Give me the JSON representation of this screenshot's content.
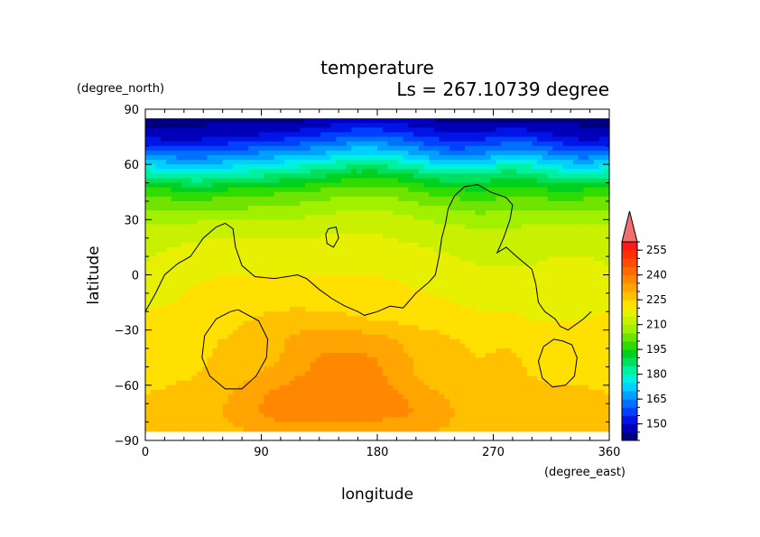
{
  "chart_data": {
    "type": "heatmap",
    "title": "temperature",
    "subtitle": "Ls = 267.10739 degree",
    "xlabel": "longitude",
    "ylabel": "latitude",
    "x_unit": "(degree_east)",
    "y_unit": "(degree_north)",
    "xlim": [
      0,
      360
    ],
    "ylim": [
      -90,
      90
    ],
    "xticks": [
      0,
      90,
      180,
      270,
      360
    ],
    "yticks": [
      90,
      60,
      30,
      0,
      -30,
      -60,
      -90
    ],
    "colorbar": {
      "levels": [
        140,
        145,
        150,
        155,
        160,
        165,
        170,
        175,
        180,
        185,
        190,
        195,
        200,
        205,
        210,
        215,
        220,
        225,
        230,
        235,
        240,
        245,
        250,
        255,
        260
      ],
      "labels": [
        150,
        165,
        180,
        195,
        210,
        225,
        240,
        255
      ],
      "colors": [
        "#00007f",
        "#0000b8",
        "#0014e6",
        "#0040ff",
        "#0070ff",
        "#00a0ff",
        "#00d0ff",
        "#00f0e0",
        "#00f0a0",
        "#00e060",
        "#00d020",
        "#30dc00",
        "#70e400",
        "#a0f000",
        "#c8f000",
        "#e6f000",
        "#ffe000",
        "#ffc000",
        "#ffa400",
        "#ff8800",
        "#ff6a00",
        "#ff4c00",
        "#ff3000",
        "#ff1a1a"
      ],
      "extend_max_color": "#f26d6d"
    },
    "latitudes": [
      85,
      75,
      65,
      55,
      45,
      35,
      25,
      15,
      5,
      -5,
      -15,
      -25,
      -35,
      -45,
      -55,
      -65,
      -75,
      -85
    ],
    "longitudes": [
      0,
      20,
      40,
      60,
      80,
      100,
      120,
      140,
      160,
      180,
      200,
      220,
      240,
      260,
      280,
      300,
      320,
      340,
      360
    ],
    "values": [
      [
        143,
        143,
        143,
        143,
        143,
        143,
        143,
        145,
        147,
        148,
        146,
        144,
        143,
        143,
        143,
        143,
        143,
        143,
        143
      ],
      [
        148,
        148,
        148,
        149,
        150,
        152,
        154,
        157,
        160,
        160,
        158,
        154,
        152,
        153,
        155,
        154,
        150,
        148,
        148
      ],
      [
        165,
        163,
        162,
        164,
        166,
        168,
        170,
        172,
        176,
        176,
        173,
        168,
        164,
        166,
        170,
        170,
        165,
        162,
        165
      ],
      [
        183,
        180,
        178,
        180,
        182,
        184,
        186,
        188,
        192,
        192,
        190,
        186,
        184,
        184,
        188,
        186,
        182,
        180,
        183
      ],
      [
        198,
        197,
        196,
        197,
        198,
        199,
        200,
        202,
        204,
        204,
        202,
        199,
        197,
        196,
        198,
        198,
        196,
        197,
        198
      ],
      [
        206,
        205,
        205,
        206,
        206,
        207,
        208,
        209,
        210,
        210,
        209,
        207,
        206,
        204,
        205,
        206,
        205,
        205,
        206
      ],
      [
        212,
        212,
        213,
        213,
        213,
        213,
        213,
        214,
        214,
        214,
        213,
        212,
        211,
        210,
        210,
        211,
        211,
        211,
        212
      ],
      [
        214,
        215,
        216,
        217,
        217,
        217,
        217,
        217,
        217,
        217,
        216,
        215,
        214,
        213,
        213,
        214,
        214,
        214,
        214
      ],
      [
        215,
        217,
        218,
        219,
        219,
        219,
        219,
        219,
        219,
        219,
        218,
        217,
        216,
        215,
        215,
        215,
        216,
        216,
        215
      ],
      [
        217,
        218,
        220,
        221,
        221,
        221,
        221,
        221,
        221,
        221,
        220,
        219,
        218,
        217,
        217,
        217,
        218,
        218,
        217
      ],
      [
        219,
        220,
        222,
        223,
        224,
        224,
        224,
        223,
        223,
        222,
        222,
        221,
        220,
        219,
        219,
        219,
        219,
        219,
        219
      ],
      [
        221,
        222,
        223,
        224,
        225,
        226,
        227,
        227,
        226,
        225,
        224,
        223,
        222,
        221,
        221,
        220,
        220,
        220,
        221
      ],
      [
        221,
        222,
        224,
        225,
        226,
        228,
        232,
        233,
        233,
        232,
        229,
        227,
        225,
        224,
        224,
        222,
        221,
        221,
        221
      ],
      [
        221,
        222,
        224,
        226,
        227,
        229,
        233,
        236,
        236,
        235,
        231,
        228,
        226,
        225,
        226,
        224,
        222,
        221,
        221
      ],
      [
        223,
        224,
        225,
        227,
        229,
        232,
        235,
        237,
        237,
        236,
        232,
        228,
        227,
        226,
        226,
        225,
        224,
        224,
        223
      ],
      [
        225,
        226,
        227,
        229,
        233,
        236,
        238,
        238,
        238,
        237,
        235,
        231,
        229,
        228,
        227,
        226,
        226,
        226,
        225
      ],
      [
        226,
        227,
        228,
        230,
        234,
        237,
        238,
        238,
        238,
        237,
        236,
        234,
        230,
        229,
        228,
        227,
        227,
        227,
        226
      ],
      [
        226,
        226,
        227,
        228,
        230,
        232,
        233,
        233,
        233,
        232,
        231,
        230,
        229,
        228,
        227,
        227,
        227,
        226,
        226
      ]
    ],
    "coastline_contours": [
      {
        "points": [
          [
            0,
            -20
          ],
          [
            8,
            -10
          ],
          [
            15,
            0
          ],
          [
            25,
            6
          ],
          [
            35,
            10
          ],
          [
            45,
            20
          ],
          [
            55,
            26
          ],
          [
            62,
            28
          ],
          [
            68,
            25
          ],
          [
            70,
            15
          ],
          [
            75,
            5
          ],
          [
            85,
            -1
          ],
          [
            100,
            -2
          ],
          [
            110,
            -1
          ],
          [
            118,
            0
          ],
          [
            125,
            -2
          ],
          [
            135,
            -8
          ],
          [
            145,
            -13
          ],
          [
            155,
            -17
          ],
          [
            165,
            -20
          ],
          [
            170,
            -22
          ],
          [
            180,
            -20
          ],
          [
            190,
            -17
          ],
          [
            200,
            -18
          ],
          [
            210,
            -10
          ],
          [
            220,
            -4
          ],
          [
            225,
            0
          ],
          [
            228,
            10
          ],
          [
            230,
            20
          ],
          [
            233,
            28
          ],
          [
            235,
            36
          ],
          [
            240,
            43
          ],
          [
            248,
            48
          ],
          [
            258,
            49
          ],
          [
            268,
            45
          ],
          [
            280,
            42
          ],
          [
            285,
            38
          ],
          [
            283,
            30
          ],
          [
            278,
            20
          ],
          [
            273,
            12
          ],
          [
            280,
            15
          ],
          [
            288,
            10
          ],
          [
            300,
            3
          ],
          [
            303,
            -5
          ],
          [
            305,
            -15
          ],
          [
            310,
            -20
          ],
          [
            318,
            -24
          ],
          [
            322,
            -28
          ],
          [
            328,
            -30
          ],
          [
            332,
            -28
          ],
          [
            340,
            -24
          ],
          [
            346,
            -20
          ]
        ]
      },
      {
        "points": [
          [
            142,
            25
          ],
          [
            148,
            26
          ],
          [
            150,
            20
          ],
          [
            146,
            15
          ],
          [
            141,
            17
          ],
          [
            140,
            22
          ],
          [
            142,
            25
          ]
        ]
      },
      {
        "points": [
          [
            72,
            -19
          ],
          [
            88,
            -25
          ],
          [
            95,
            -35
          ],
          [
            94,
            -45
          ],
          [
            86,
            -55
          ],
          [
            75,
            -62
          ],
          [
            62,
            -62
          ],
          [
            50,
            -55
          ],
          [
            44,
            -45
          ],
          [
            46,
            -33
          ],
          [
            55,
            -24
          ],
          [
            66,
            -20
          ],
          [
            72,
            -19
          ]
        ]
      },
      {
        "points": [
          [
            324,
            -36
          ],
          [
            331,
            -38
          ],
          [
            335,
            -45
          ],
          [
            333,
            -55
          ],
          [
            326,
            -60
          ],
          [
            316,
            -61
          ],
          [
            308,
            -56
          ],
          [
            305,
            -47
          ],
          [
            309,
            -39
          ],
          [
            317,
            -35
          ],
          [
            324,
            -36
          ]
        ]
      }
    ]
  }
}
